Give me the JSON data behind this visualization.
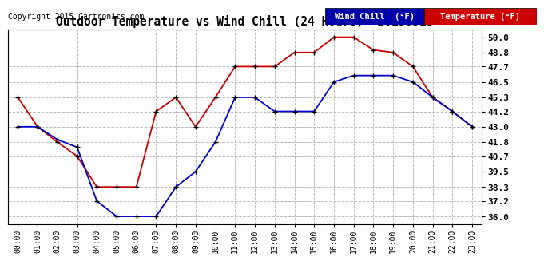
{
  "title": "Outdoor Temperature vs Wind Chill (24 Hours)  20150513",
  "copyright": "Copyright 2015 Cartronics.com",
  "background_color": "#ffffff",
  "plot_background": "#ffffff",
  "grid_color": "#bbbbbb",
  "x_labels": [
    "00:00",
    "01:00",
    "02:00",
    "03:00",
    "04:00",
    "05:00",
    "06:00",
    "07:00",
    "08:00",
    "09:00",
    "10:00",
    "11:00",
    "12:00",
    "13:00",
    "14:00",
    "15:00",
    "16:00",
    "17:00",
    "18:00",
    "19:00",
    "20:00",
    "21:00",
    "22:00",
    "23:00"
  ],
  "y_ticks": [
    36.0,
    37.2,
    38.3,
    39.5,
    40.7,
    41.8,
    43.0,
    44.2,
    45.3,
    46.5,
    47.7,
    48.8,
    50.0
  ],
  "ylim": [
    35.4,
    50.6
  ],
  "temperature_color": "#cc0000",
  "windchill_color": "#0000cc",
  "marker_color": "#000000",
  "temperature_label": "Temperature (°F)",
  "windchill_label": "Wind Chill  (°F)",
  "temperature_data": [
    45.3,
    43.0,
    41.8,
    40.7,
    38.3,
    38.3,
    38.3,
    44.2,
    45.3,
    43.0,
    45.3,
    47.7,
    47.7,
    47.7,
    48.8,
    48.8,
    50.0,
    50.0,
    49.0,
    48.8,
    47.7,
    45.3,
    44.2,
    43.0
  ],
  "windchill_data": [
    43.0,
    43.0,
    42.0,
    41.4,
    37.2,
    36.0,
    36.0,
    36.0,
    38.3,
    39.5,
    41.8,
    45.3,
    45.3,
    44.2,
    44.2,
    44.2,
    46.5,
    47.0,
    47.0,
    47.0,
    46.5,
    45.3,
    44.2,
    43.0
  ],
  "legend_wc_bg": "#0000aa",
  "legend_temp_bg": "#cc0000",
  "legend_text_color": "#ffffff"
}
